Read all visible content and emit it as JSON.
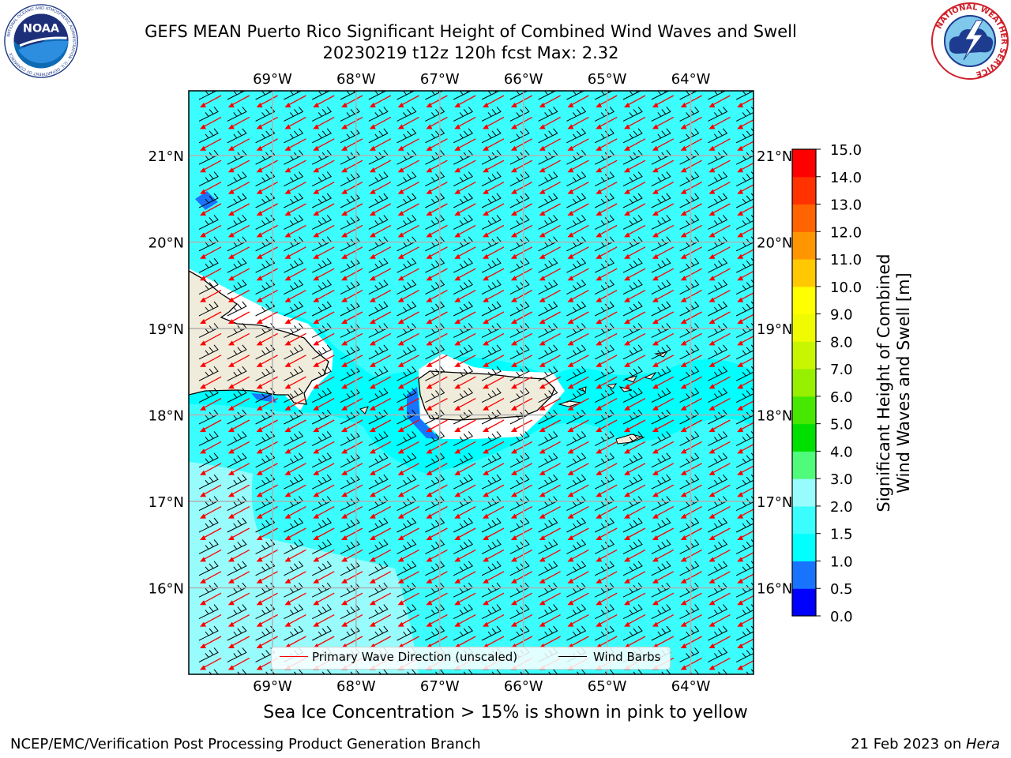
{
  "title": {
    "line1": "GEFS MEAN Puerto Rico Significant Height of Combined Wind Waves and Swell",
    "line2": "20230219 t12z 120h fcst   Max: 2.32"
  },
  "map": {
    "lon_labels": [
      "69°W",
      "68°W",
      "67°W",
      "66°W",
      "65°W",
      "64°W"
    ],
    "lon_values": [
      -69,
      -68,
      -67,
      -66,
      -65,
      -64
    ],
    "lat_labels": [
      "16°N",
      "17°N",
      "18°N",
      "19°N",
      "20°N",
      "21°N"
    ],
    "lat_values": [
      16,
      17,
      18,
      19,
      20,
      21
    ],
    "lon_range": [
      -70,
      -63.25
    ],
    "lat_range": [
      15,
      21.75
    ],
    "land_color": "#efecdc",
    "wave_arrow_color": "#ff0000",
    "barb_color": "#000000"
  },
  "legend": {
    "wave_label": "Primary Wave Direction (unscaled)",
    "barb_label": "Wind Barbs"
  },
  "colorbar": {
    "label_line1": "Significant Height of Combined",
    "label_line2": "Wind Waves and Swell [m]",
    "ticks": [
      "0.0",
      "0.5",
      "1.0",
      "1.5",
      "2.0",
      "3.0",
      "4.0",
      "5.0",
      "6.0",
      "7.0",
      "8.0",
      "9.0",
      "10.0",
      "11.0",
      "12.0",
      "13.0",
      "14.0",
      "15.0"
    ],
    "colors": [
      "#0000ff",
      "#1874ff",
      "#00ffff",
      "#3cfdfd",
      "#98fcfc",
      "#50fa7a",
      "#00e000",
      "#46e800",
      "#96f000",
      "#c8f500",
      "#f0fa00",
      "#ffff00",
      "#ffc800",
      "#ff9600",
      "#ff6400",
      "#ff3200",
      "#ff0000"
    ]
  },
  "caption": "Sea Ice Concentration > 15% is shown in pink to yellow",
  "footer": {
    "left": "NCEP/EMC/Verification Post Processing Product Generation Branch",
    "right_prefix": "21 Feb 2023 on ",
    "right_host": "Hera"
  },
  "logos": {
    "noaa_text": "NOAA",
    "noaa_ring": "NATIONAL OCEANIC AND ATMOSPHERIC ADMINISTRATION · U.S. DEPARTMENT OF COMMERCE",
    "nws_ring": "NATIONAL WEATHER SERVICE"
  }
}
